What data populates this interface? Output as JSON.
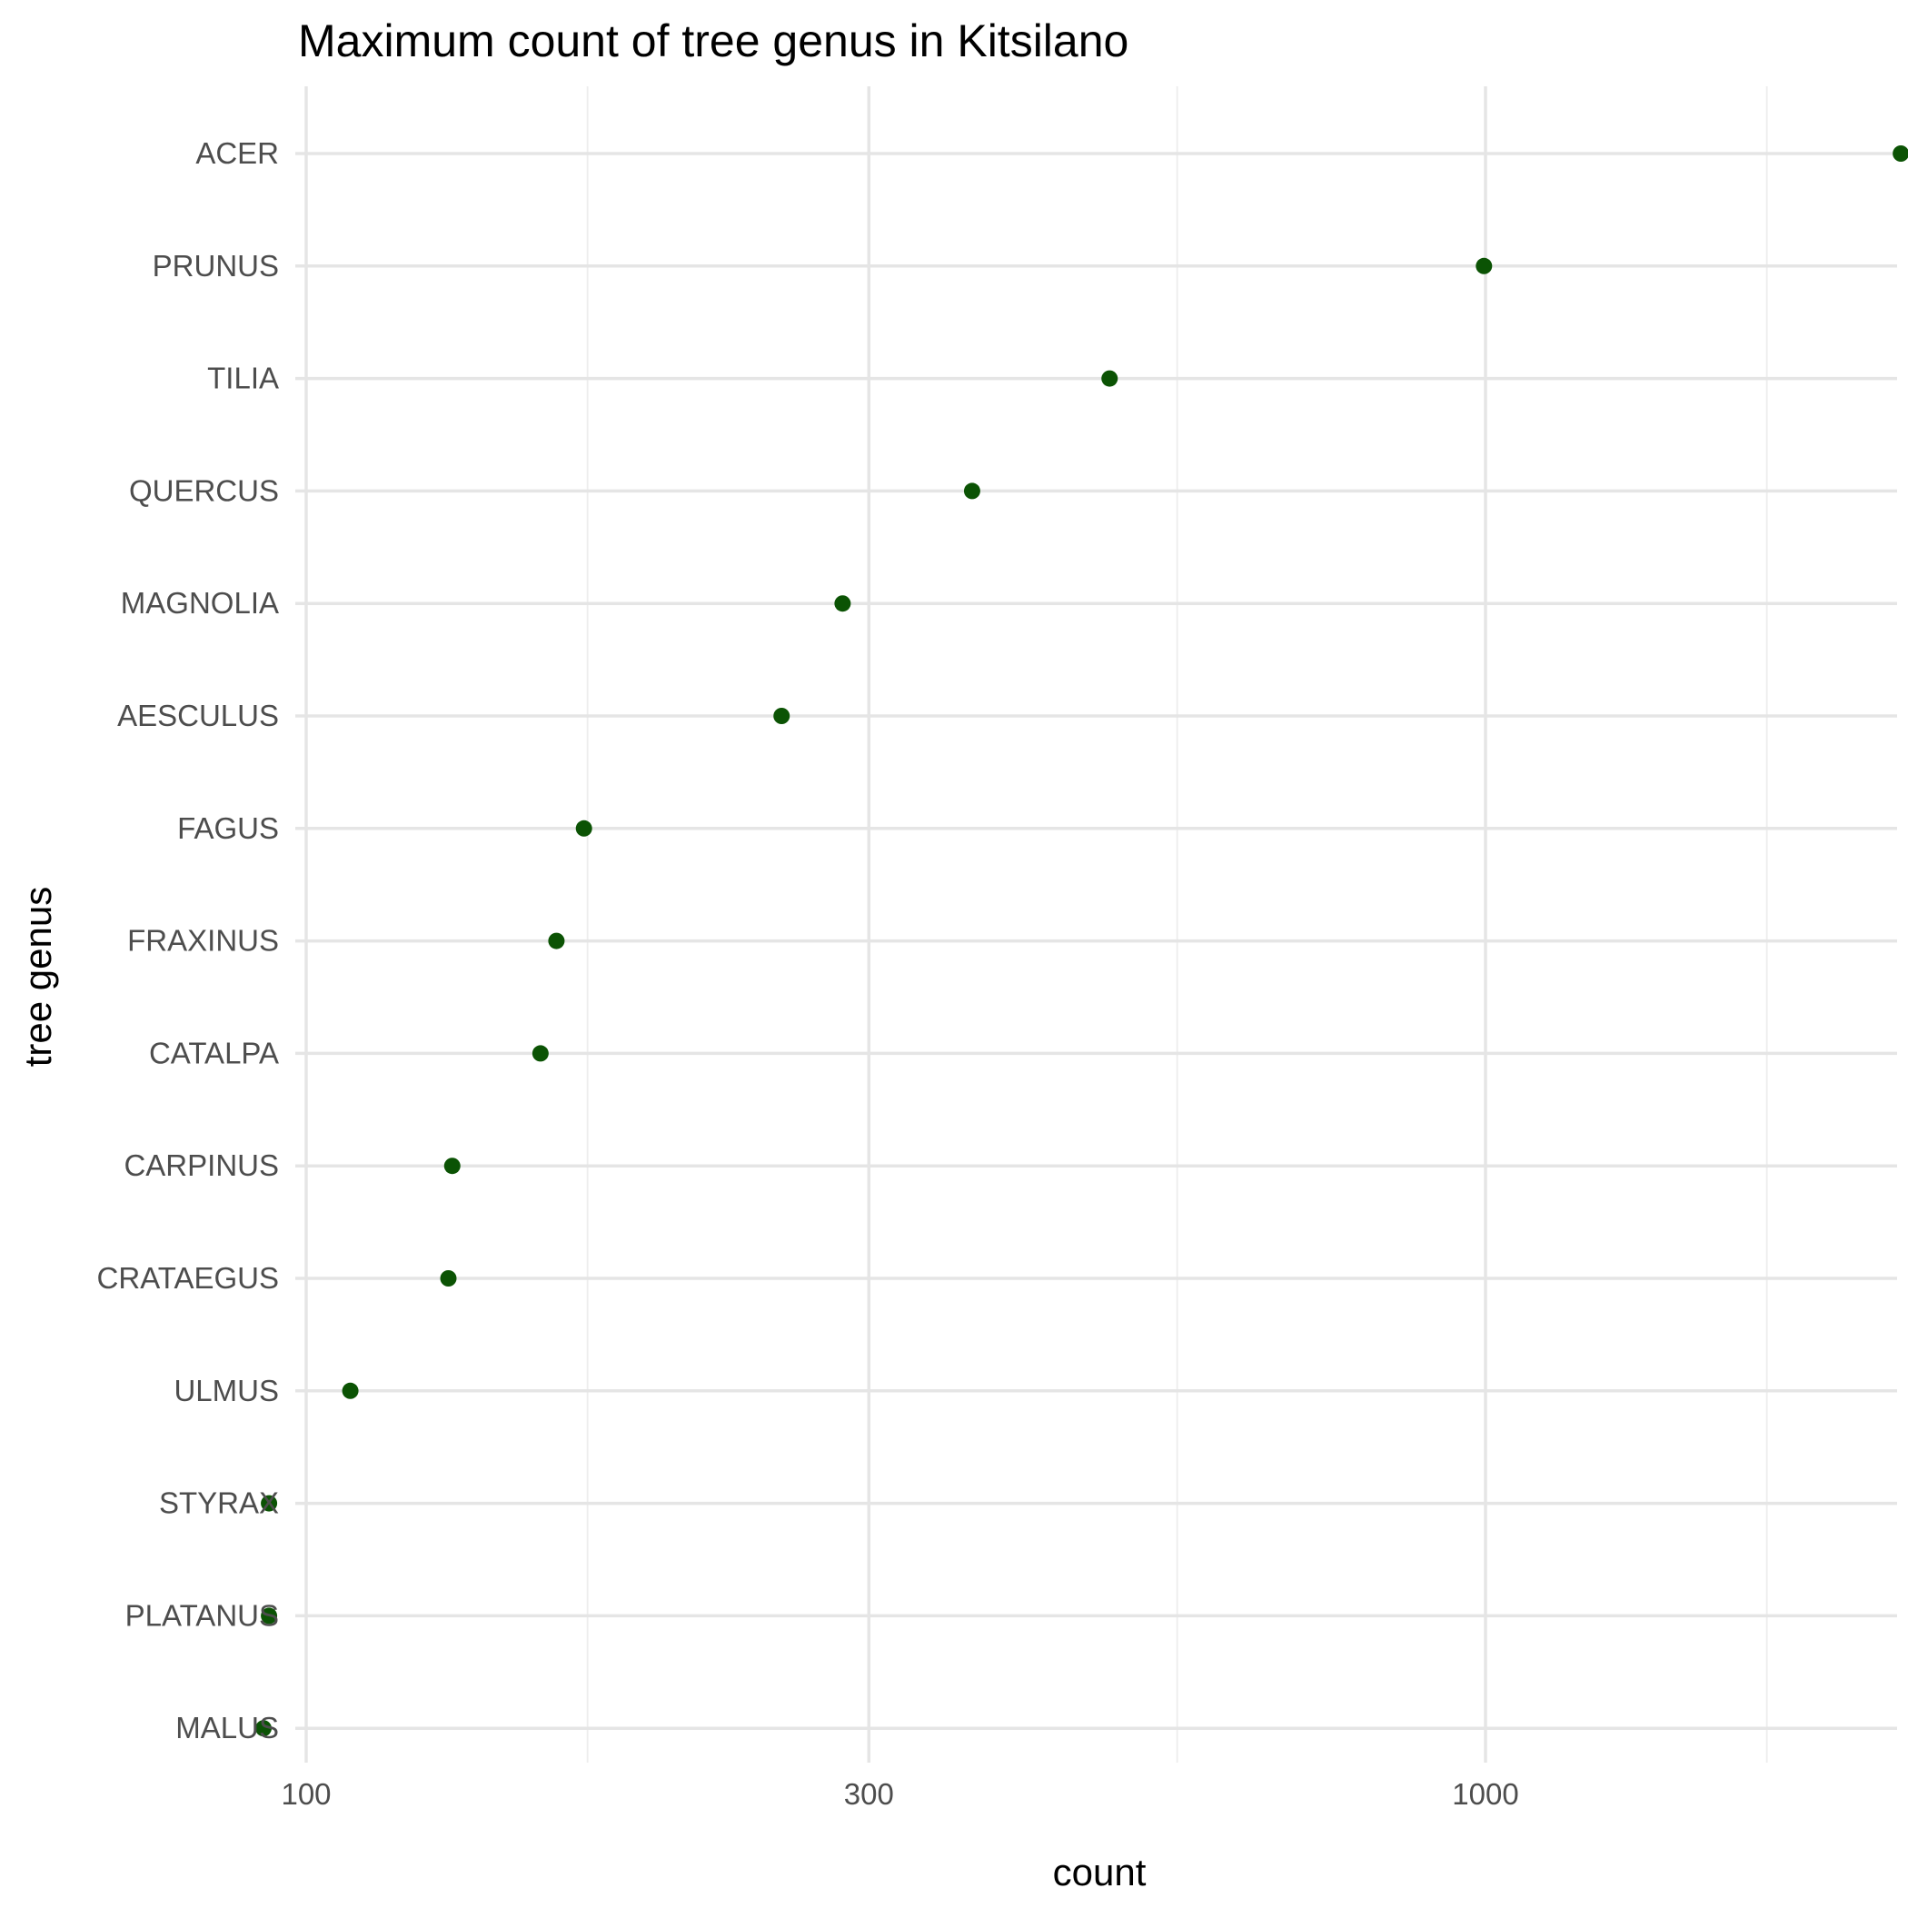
{
  "chart_data": {
    "type": "scatter",
    "title": "Maximum count of tree genus in Kitsilano",
    "xlabel": "count",
    "ylabel": "tree genus",
    "x_scale": "log10",
    "xlim": [
      100,
      2400
    ],
    "x_ticks": [
      100,
      300,
      1000
    ],
    "x_tick_labels": [
      "100",
      "300",
      "1000"
    ],
    "grid": true,
    "point_color": "#0b5304",
    "categories": [
      "ACER",
      "PRUNUS",
      "TILIA",
      "QUERCUS",
      "MAGNOLIA",
      "AESCULUS",
      "FAGUS",
      "FRAXINUS",
      "CATALPA",
      "CARPINUS",
      "CRATAEGUS",
      "ULMUS",
      "STYRAX",
      "PLATANUS",
      "MALUS"
    ],
    "values": [
      2250,
      997,
      480,
      367,
      285,
      253,
      172,
      163,
      158,
      133,
      132,
      109,
      93,
      93,
      92
    ]
  }
}
